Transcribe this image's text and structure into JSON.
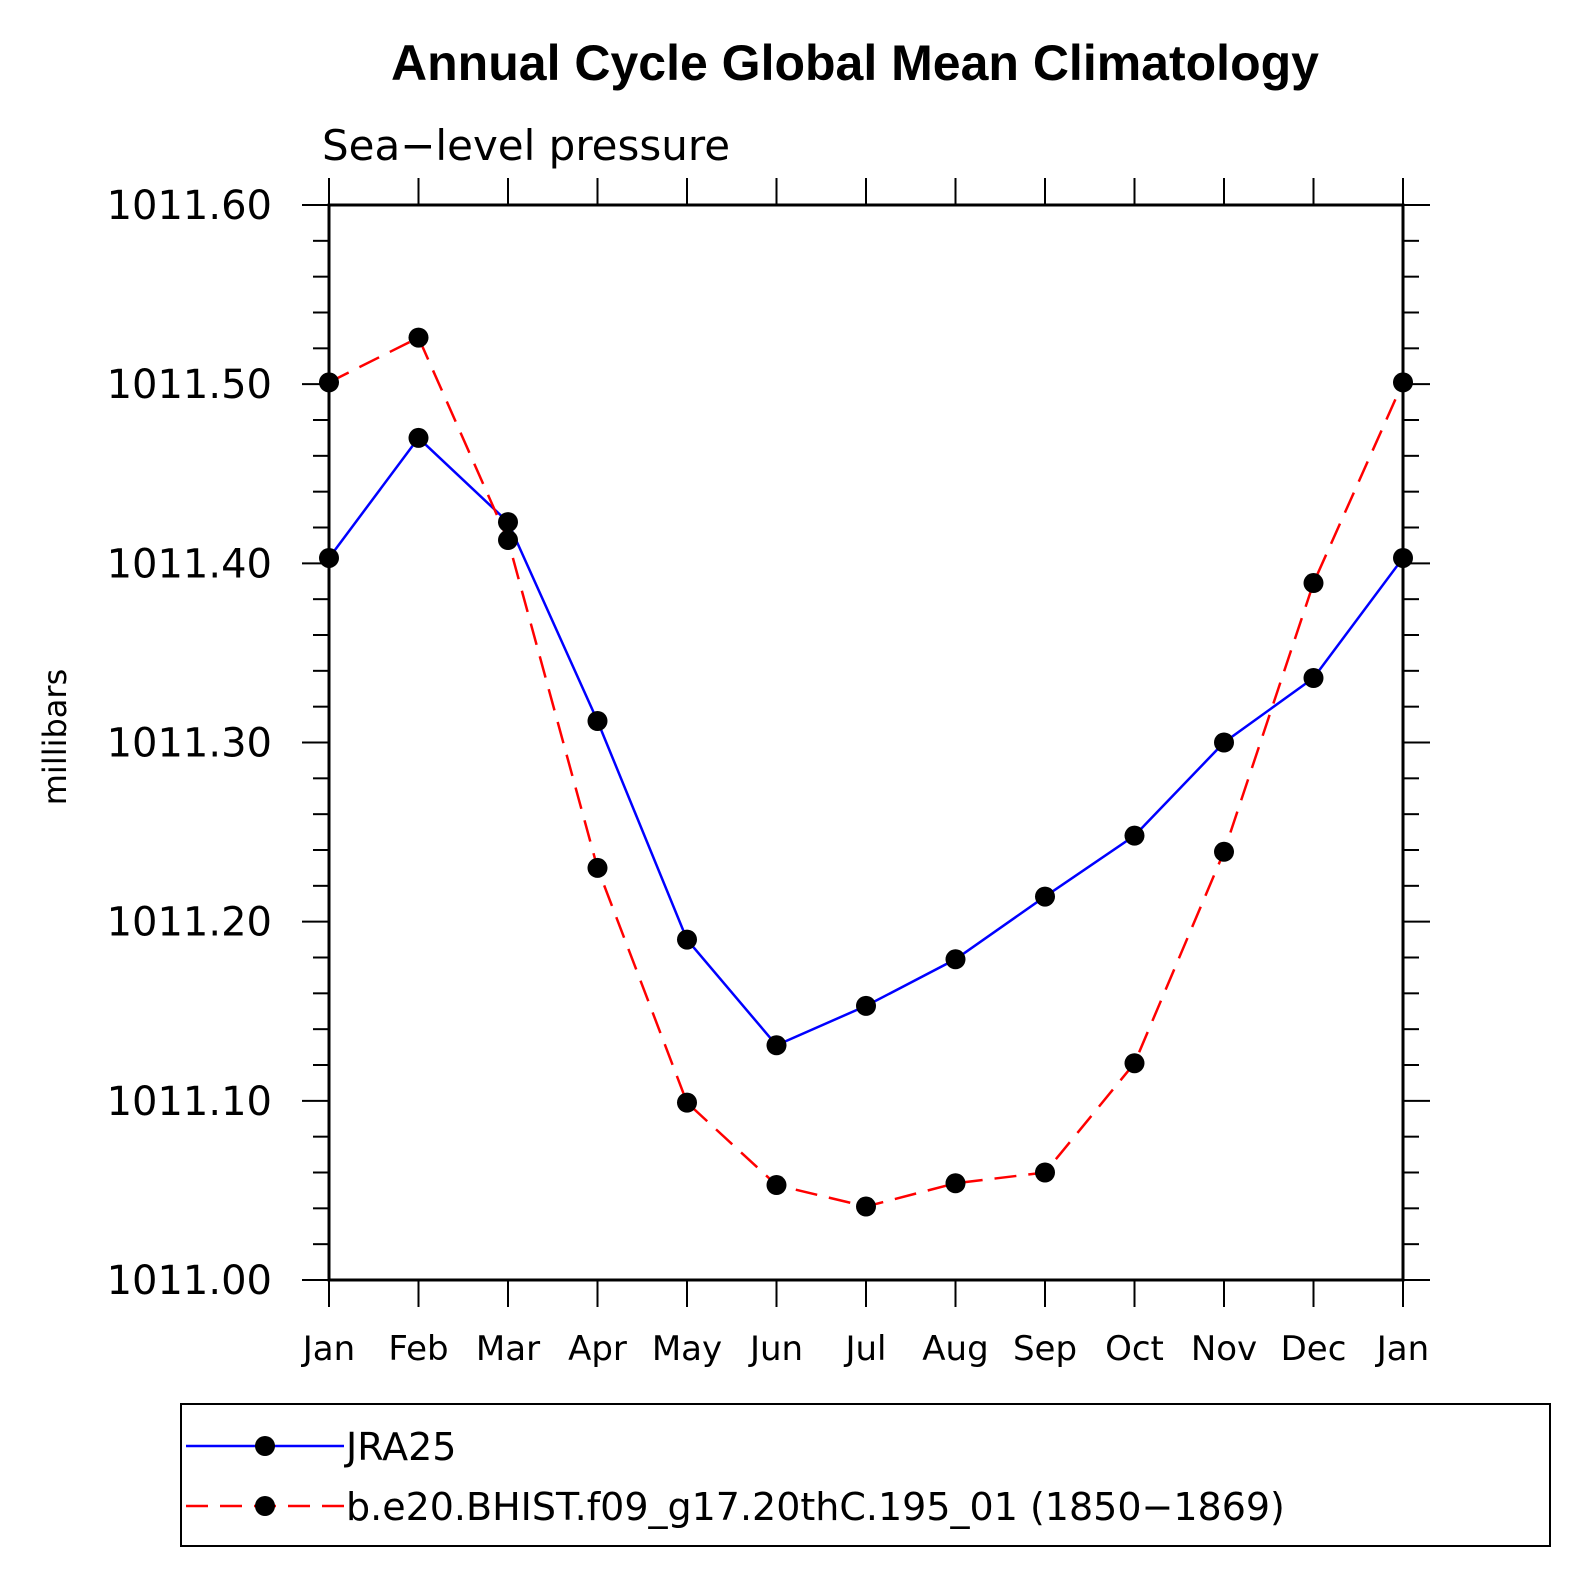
{
  "chart_data": {
    "type": "line",
    "title": "Annual Cycle Global Mean Climatology",
    "subtitle": "Sea−level pressure",
    "ylabel": "millibars",
    "xlabel": "",
    "ylim": [
      1011.0,
      1011.6
    ],
    "yticks": [
      "1011.00",
      "1011.10",
      "1011.20",
      "1011.30",
      "1011.40",
      "1011.50",
      "1011.60"
    ],
    "categories": [
      "Jan",
      "Feb",
      "Mar",
      "Apr",
      "May",
      "Jun",
      "Jul",
      "Aug",
      "Sep",
      "Oct",
      "Nov",
      "Dec",
      "Jan"
    ],
    "series": [
      {
        "name": "JRA25",
        "color": "#0000ff",
        "dashed": false,
        "values": [
          1011.403,
          1011.47,
          1011.423,
          1011.312,
          1011.19,
          1011.131,
          1011.153,
          1011.179,
          1011.214,
          1011.248,
          1011.3,
          1011.336,
          1011.403
        ]
      },
      {
        "name": "b.e20.BHIST.f09_g17.20thC.195_01 (1850−1869)",
        "color": "#ff0000",
        "dashed": true,
        "values": [
          1011.501,
          1011.526,
          1011.413,
          1011.23,
          1011.099,
          1011.053,
          1011.041,
          1011.054,
          1011.06,
          1011.121,
          1011.239,
          1011.389,
          1011.501
        ]
      }
    ],
    "marker_color": "#000000",
    "grid": false,
    "legend_position": "bottom"
  }
}
